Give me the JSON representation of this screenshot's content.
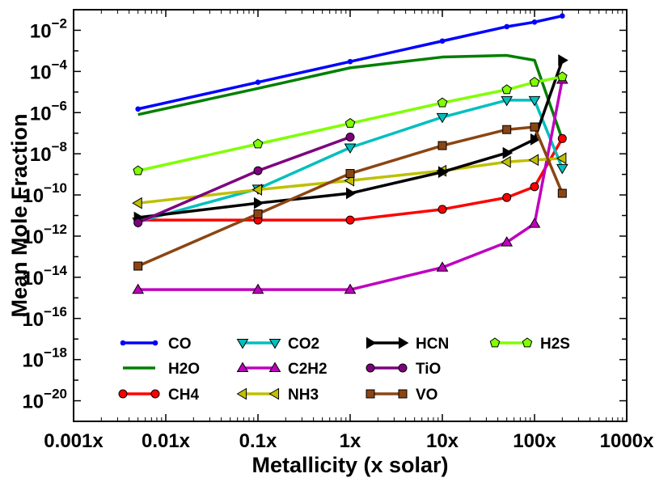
{
  "chart_data": {
    "type": "line",
    "title": "",
    "xlabel": "Metallicity (x solar)",
    "ylabel": "Mean Mole Fraction",
    "xscale": "log",
    "yscale": "log",
    "xlim": [
      0.001,
      1000
    ],
    "ylim": [
      1e-21,
      0.1
    ],
    "x_ticks": [
      {
        "value": 0.001,
        "label": "0.001x"
      },
      {
        "value": 0.01,
        "label": "0.01x"
      },
      {
        "value": 0.1,
        "label": "0.1x"
      },
      {
        "value": 1,
        "label": "1x"
      },
      {
        "value": 10,
        "label": "10x"
      },
      {
        "value": 100,
        "label": "100x"
      },
      {
        "value": 1000,
        "label": "1000x"
      }
    ],
    "y_ticks": [
      {
        "exp": -2,
        "base": "10",
        "sup": "−2"
      },
      {
        "exp": -4,
        "base": "10",
        "sup": "−4"
      },
      {
        "exp": -6,
        "base": "10",
        "sup": "−6"
      },
      {
        "exp": -8,
        "base": "10",
        "sup": "−8"
      },
      {
        "exp": -10,
        "base": "10",
        "sup": "−10"
      },
      {
        "exp": -12,
        "base": "10",
        "sup": "−12"
      },
      {
        "exp": -14,
        "base": "10",
        "sup": "−14"
      },
      {
        "exp": -16,
        "base": "10",
        "sup": "−16"
      },
      {
        "exp": -18,
        "base": "10",
        "sup": "−18"
      },
      {
        "exp": -20,
        "base": "10",
        "sup": "−20"
      }
    ],
    "legend_position": "lower-center",
    "x": [
      0.005,
      0.1,
      1,
      10,
      50,
      100,
      200
    ],
    "series": [
      {
        "name": "CO",
        "color": "#0000ff",
        "marker": "point",
        "values": [
          1.5e-06,
          3e-05,
          0.0003,
          0.003,
          0.015,
          0.025,
          0.05
        ]
      },
      {
        "name": "H2O",
        "color": "#007f00",
        "marker": "none",
        "values": [
          8e-07,
          1.5e-05,
          0.00015,
          0.0005,
          0.0006,
          0.00035,
          5e-08
        ]
      },
      {
        "name": "CH4",
        "color": "#ff0000",
        "marker": "circle",
        "values": [
          6e-12,
          6e-12,
          6e-12,
          2e-11,
          7.5e-11,
          2.5e-10,
          5.5e-08
        ]
      },
      {
        "name": "CO2",
        "color": "#00bfbf",
        "marker": "triangle-down",
        "values": [
          5e-12,
          2e-10,
          2e-08,
          6e-07,
          4e-06,
          4e-06,
          2e-09
        ]
      },
      {
        "name": "C2H2",
        "color": "#bf00bf",
        "marker": "triangle-up",
        "values": [
          2.5e-15,
          2.5e-15,
          2.5e-15,
          3e-14,
          5e-13,
          4e-12,
          4e-05
        ]
      },
      {
        "name": "NH3",
        "color": "#bfbf00",
        "marker": "triangle-left",
        "values": [
          4e-11,
          1.8e-10,
          5e-10,
          1.5e-09,
          4e-09,
          5e-09,
          6e-09
        ]
      },
      {
        "name": "HCN",
        "color": "#000000",
        "marker": "triangle-right",
        "values": [
          8e-12,
          4e-11,
          1.2e-10,
          1.3e-09,
          1.1e-08,
          5e-08,
          0.00035
        ]
      },
      {
        "name": "TiO",
        "color": "#7f007f",
        "marker": "circle",
        "x": [
          0.005,
          0.1,
          1
        ],
        "values": [
          4.5e-12,
          1.5e-09,
          6.5e-08
        ]
      },
      {
        "name": "VO",
        "color": "#8b4513",
        "marker": "square",
        "values": [
          3.5e-14,
          1.2e-11,
          1.1e-09,
          2.5e-08,
          1.5e-07,
          2e-07,
          1.2e-10
        ]
      },
      {
        "name": "H2S",
        "color": "#7fff00",
        "marker": "pentagon",
        "values": [
          1.5e-09,
          3e-08,
          3e-07,
          3e-06,
          1.3e-05,
          3e-05,
          5.5e-05
        ]
      }
    ]
  }
}
